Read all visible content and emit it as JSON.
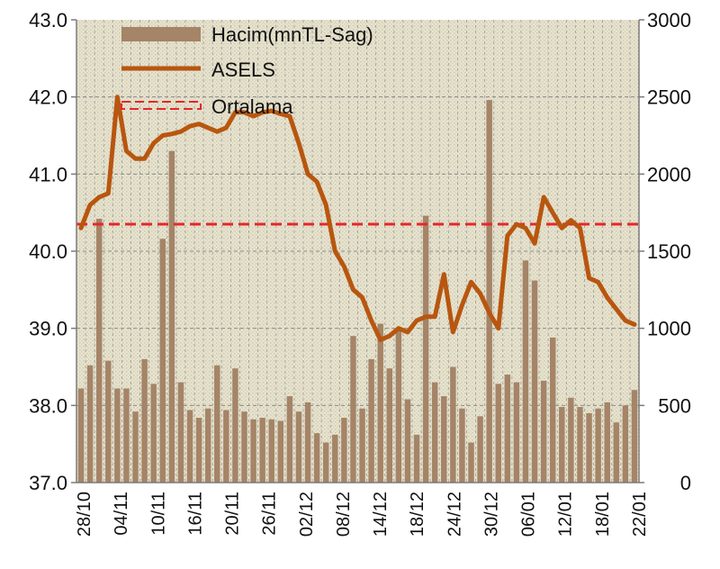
{
  "chart_data": {
    "type": "bar+line",
    "x_labels": [
      "28/10",
      "04/11",
      "10/11",
      "16/11",
      "20/11",
      "26/11",
      "02/12",
      "08/12",
      "14/12",
      "18/12",
      "24/12",
      "30/12",
      "06/01",
      "12/01",
      "18/01",
      "22/01"
    ],
    "left_axis": {
      "ylim": [
        37.0,
        43.0
      ],
      "ticks": [
        "43.0",
        "42.0",
        "41.0",
        "40.0",
        "39.0",
        "38.0",
        "37.0"
      ]
    },
    "right_axis": {
      "ylim": [
        0,
        3000
      ],
      "ticks": [
        "3000",
        "2500",
        "2000",
        "1500",
        "1000",
        "500",
        "0"
      ]
    },
    "grid": true,
    "legend": {
      "placement": "top-left",
      "entries": [
        {
          "label": "Hacim(mnTL-Sag)",
          "type": "bar",
          "color": "#A58467"
        },
        {
          "label": "ASELS",
          "type": "line",
          "color": "#B8560F"
        },
        {
          "label": "Ortalama",
          "type": "dashed-line",
          "color": "#E8262A"
        }
      ]
    },
    "series": [
      {
        "name": "Hacim(mnTL-Sag)",
        "axis": "right",
        "values": [
          610,
          760,
          1710,
          790,
          610,
          610,
          460,
          800,
          640,
          1580,
          2150,
          650,
          470,
          420,
          480,
          760,
          470,
          740,
          460,
          410,
          420,
          410,
          400,
          560,
          460,
          520,
          320,
          260,
          310,
          420,
          950,
          480,
          800,
          1030,
          740,
          990,
          540,
          310,
          1730,
          650,
          560,
          750,
          480,
          260,
          430,
          2480,
          640,
          700,
          650,
          1440,
          1310,
          660,
          940,
          490,
          550,
          490,
          450,
          480,
          520,
          390,
          500,
          600
        ]
      },
      {
        "name": "ASELS",
        "axis": "left",
        "values": [
          40.3,
          40.6,
          40.7,
          40.75,
          42.0,
          41.3,
          41.2,
          41.2,
          41.4,
          41.5,
          41.52,
          41.55,
          41.62,
          41.65,
          41.6,
          41.55,
          41.6,
          41.8,
          41.8,
          41.75,
          41.8,
          41.82,
          41.78,
          41.75,
          41.4,
          41.0,
          40.9,
          40.6,
          40.0,
          39.8,
          39.5,
          39.4,
          39.1,
          38.85,
          38.9,
          39.0,
          38.95,
          39.1,
          39.15,
          39.15,
          39.7,
          38.95,
          39.3,
          39.6,
          39.45,
          39.2,
          39.0,
          40.2,
          40.35,
          40.3,
          40.1,
          40.7,
          40.5,
          40.3,
          40.4,
          40.3,
          39.65,
          39.6,
          39.4,
          39.25,
          39.1,
          39.05
        ]
      },
      {
        "name": "Ortalama",
        "axis": "left",
        "values": [
          40.35,
          40.35
        ]
      }
    ]
  }
}
